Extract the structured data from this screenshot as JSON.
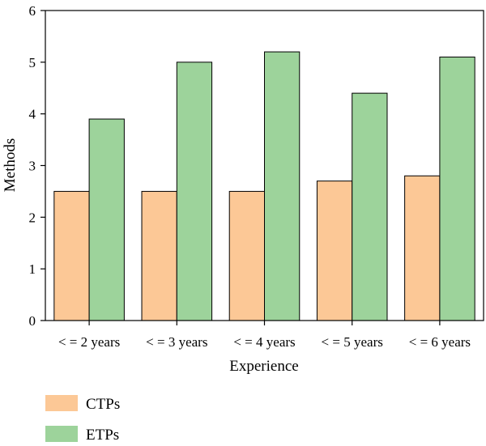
{
  "chart_data": {
    "type": "bar",
    "categories": [
      "< = 2 years",
      "< = 3 years",
      "< = 4 years",
      "< = 5 years",
      "< = 6 years"
    ],
    "series": [
      {
        "name": "CTPs",
        "values": [
          2.5,
          2.5,
          2.5,
          2.7,
          2.8
        ],
        "color": "#fcc896"
      },
      {
        "name": "ETPs",
        "values": [
          3.9,
          5.0,
          5.2,
          4.4,
          5.1
        ],
        "color": "#9dd39b"
      }
    ],
    "xlabel": "Experience",
    "ylabel": "Methods",
    "ylim": [
      0,
      6
    ],
    "yticks": [
      "0",
      "1",
      "2",
      "3",
      "4",
      "5",
      "6"
    ],
    "grid": false,
    "legend_position": "bottom-left"
  }
}
